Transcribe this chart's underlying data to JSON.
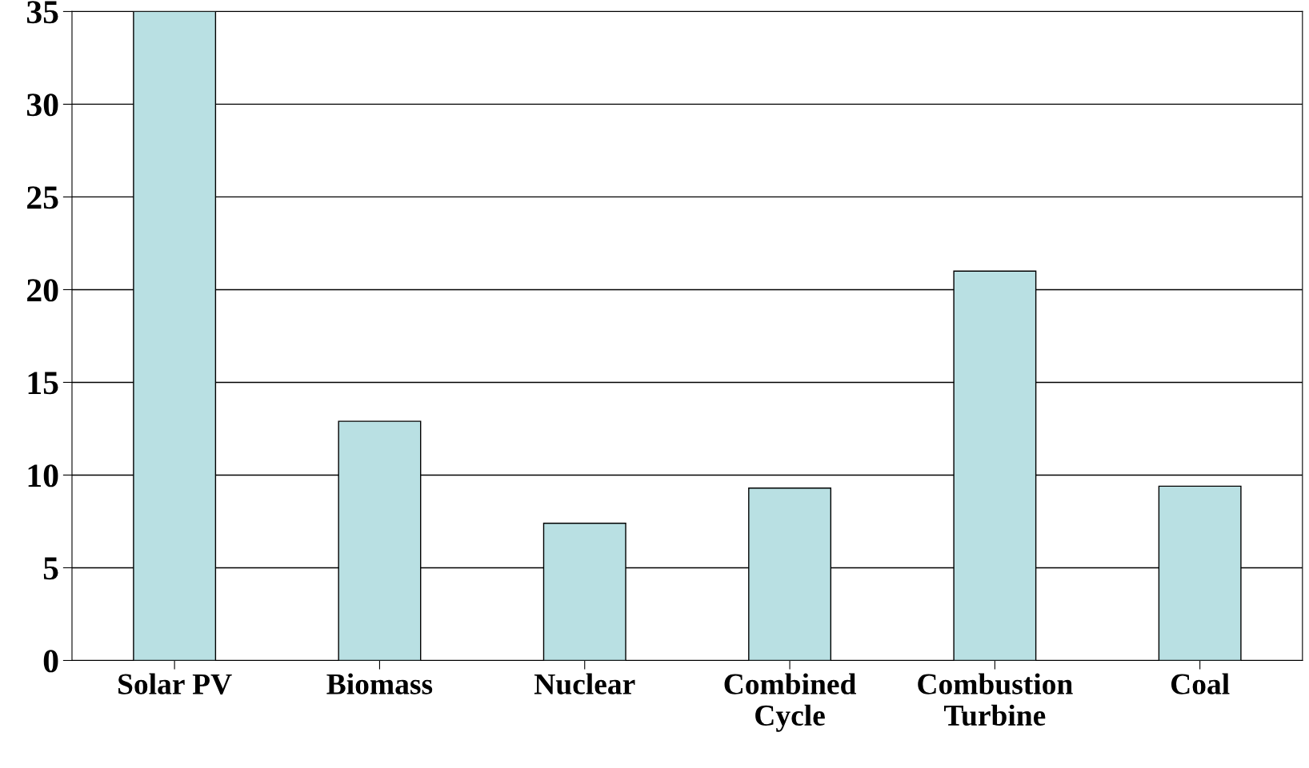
{
  "chart_data": {
    "type": "bar",
    "categories": [
      "Solar PV",
      "Biomass",
      "Nuclear",
      "Combined\nCycle",
      "Combustion\nTurbine",
      "Coal"
    ],
    "values": [
      35,
      12.9,
      7.4,
      9.3,
      21,
      9.4
    ],
    "color": "#b9e0e3",
    "ylim": [
      0,
      35
    ],
    "yticks": [
      0,
      5,
      10,
      15,
      20,
      25,
      30,
      35
    ],
    "grid": "y"
  }
}
